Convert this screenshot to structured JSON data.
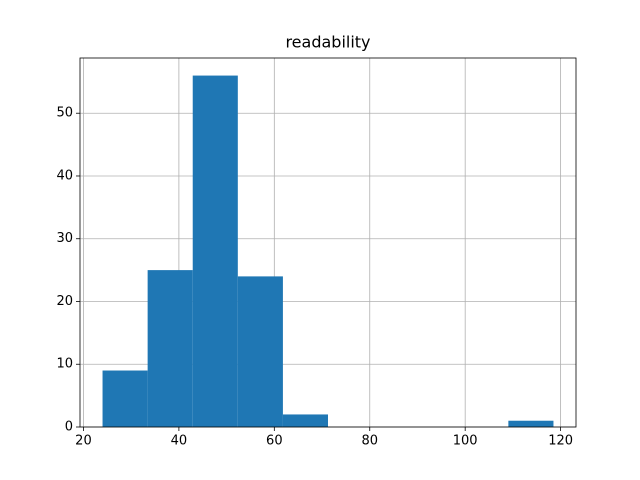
{
  "chart_data": {
    "type": "histogram",
    "title": "readability",
    "bins": [
      24,
      33.45,
      42.9,
      52.35,
      61.8,
      71.25,
      80.7,
      90.15,
      99.6,
      109.05,
      118.5
    ],
    "values": [
      9,
      25,
      56,
      24,
      2,
      0,
      0,
      0,
      0,
      1
    ],
    "color": "#1f77b4",
    "xlim": [
      19.275,
      123.225
    ],
    "xticks": [
      20,
      40,
      60,
      80,
      100,
      120
    ],
    "ylim": [
      0,
      58.8
    ],
    "yticks": [
      0,
      10,
      20,
      30,
      40,
      50
    ],
    "grid": true
  }
}
